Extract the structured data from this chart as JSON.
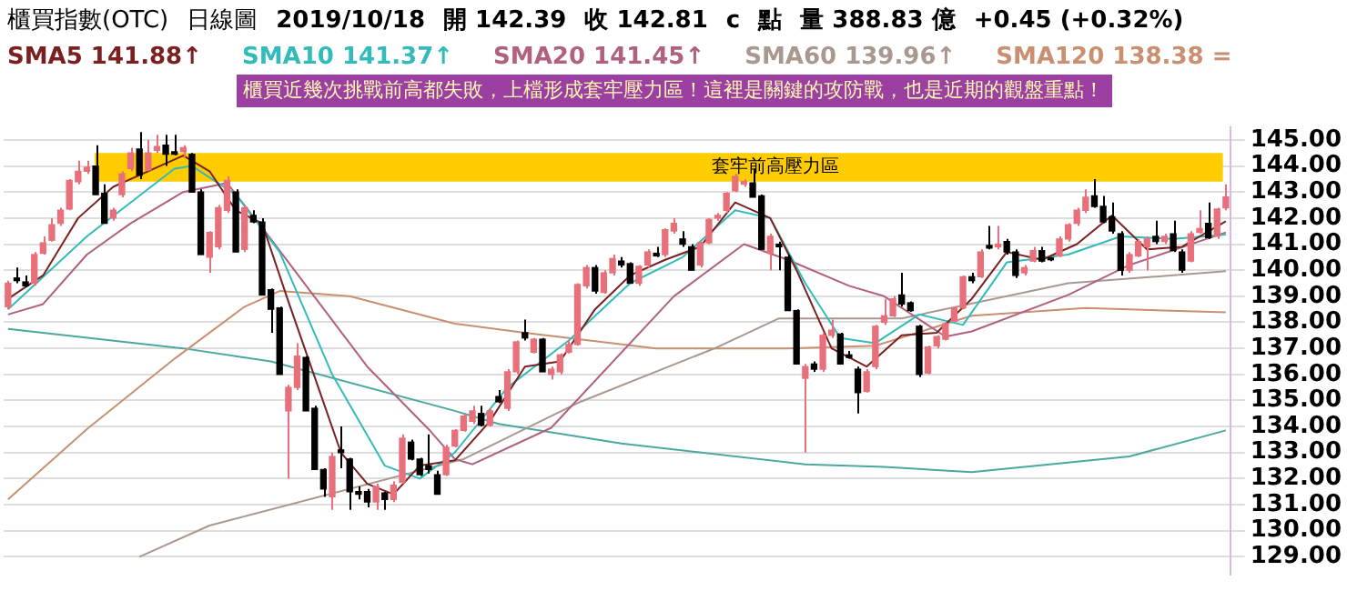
{
  "chart_data": {
    "type": "candlestick",
    "title": "櫃買指數(OTC)",
    "annotations": [
      "日線圖",
      "2019/10/18",
      "開 142.39",
      "收 142.81",
      "c",
      "點",
      "量 388.83 億",
      "+0.45 (+0.32%)",
      "櫃買近幾次挑戰前高都失敗，上檔形成套牢壓力區！這裡是關鍵的攻防戰，也是近期的觀盤重點！"
    ],
    "categories": [
      null,
      null,
      null,
      null,
      null,
      null,
      null,
      null,
      null,
      null,
      null,
      null,
      null,
      null,
      null,
      null,
      null,
      null,
      null,
      null,
      null,
      null,
      null,
      null,
      null,
      null,
      null,
      null,
      null,
      null,
      null,
      null,
      null,
      null,
      null,
      null,
      null,
      null,
      null,
      null,
      null,
      null,
      null,
      null,
      null,
      null,
      null,
      null,
      null,
      null,
      null,
      null,
      null,
      null,
      null,
      null,
      null,
      null,
      null,
      null,
      null,
      null,
      null,
      null,
      null,
      null,
      null,
      null,
      null,
      null,
      null,
      null,
      null,
      null,
      null,
      null,
      null,
      null,
      null,
      null,
      null,
      null,
      null,
      null,
      null,
      null,
      null,
      null,
      null,
      null,
      null,
      null,
      null,
      null,
      null,
      null,
      null,
      null,
      null,
      null,
      null,
      null,
      null,
      null,
      null,
      null,
      null,
      null,
      null,
      null,
      null,
      null,
      null,
      null,
      null,
      null,
      null,
      null,
      null,
      null,
      null,
      null,
      null,
      null,
      null,
      null,
      null,
      null,
      null,
      null,
      null,
      null,
      null,
      null,
      null,
      null,
      null,
      null,
      null,
      null
    ],
    "ohlc": [
      [
        138.6,
        139.6,
        138.5,
        139.5
      ],
      [
        139.7,
        140.1,
        139.5,
        139.6
      ],
      [
        139.55,
        139.8,
        139.35,
        139.4
      ],
      [
        139.5,
        140.7,
        139.4,
        140.6
      ],
      [
        140.65,
        141.3,
        140.6,
        141.05
      ],
      [
        141.15,
        142.0,
        141.1,
        141.75
      ],
      [
        141.8,
        142.4,
        141.7,
        142.3
      ],
      [
        142.35,
        143.5,
        142.3,
        143.45
      ],
      [
        143.4,
        144.2,
        143.3,
        143.8
      ],
      [
        143.8,
        144.2,
        143.7,
        143.95
      ],
      [
        144.0,
        144.8,
        142.9,
        142.9
      ],
      [
        142.95,
        143.3,
        141.8,
        141.8
      ],
      [
        142.0,
        142.4,
        141.9,
        142.3
      ],
      [
        142.9,
        143.8,
        142.8,
        143.7
      ],
      [
        143.9,
        144.7,
        143.8,
        144.5
      ],
      [
        144.65,
        145.3,
        143.5,
        143.65
      ],
      [
        143.85,
        145.0,
        143.8,
        144.5
      ],
      [
        144.6,
        145.2,
        144.5,
        144.75
      ],
      [
        144.8,
        145.2,
        144.0,
        144.45
      ],
      [
        144.55,
        145.2,
        144.4,
        144.45
      ],
      [
        144.55,
        144.8,
        144.3,
        144.7
      ],
      [
        144.45,
        144.5,
        143.0,
        143.0
      ],
      [
        143.0,
        143.1,
        140.6,
        140.6
      ],
      [
        140.5,
        141.5,
        139.9,
        141.45
      ],
      [
        140.9,
        142.5,
        140.8,
        142.4
      ],
      [
        142.3,
        143.6,
        142.2,
        143.45
      ],
      [
        143.0,
        143.1,
        140.7,
        140.7
      ],
      [
        140.8,
        142.5,
        140.7,
        142.4
      ],
      [
        142.1,
        142.3,
        141.8,
        141.85
      ],
      [
        141.85,
        142.0,
        139.05,
        139.05
      ],
      [
        139.25,
        139.3,
        137.6,
        138.5
      ],
      [
        138.55,
        138.6,
        136.0,
        136.0
      ],
      [
        134.6,
        135.6,
        132.0,
        135.5
      ],
      [
        135.5,
        137.2,
        135.4,
        136.7
      ],
      [
        136.65,
        136.7,
        134.6,
        134.6
      ],
      [
        134.7,
        134.8,
        132.35,
        132.35
      ],
      [
        132.35,
        132.4,
        131.3,
        131.6
      ],
      [
        131.3,
        133.0,
        130.8,
        132.85
      ],
      [
        133.1,
        134.0,
        132.4,
        133.0
      ],
      [
        132.75,
        132.8,
        130.8,
        131.5
      ],
      [
        131.5,
        131.7,
        131.2,
        131.4
      ],
      [
        131.5,
        131.6,
        130.9,
        131.1
      ],
      [
        131.1,
        131.8,
        130.8,
        131.7
      ],
      [
        131.45,
        131.5,
        130.8,
        131.2
      ],
      [
        131.2,
        131.9,
        131.1,
        131.75
      ],
      [
        131.85,
        133.7,
        131.8,
        133.55
      ],
      [
        133.4,
        133.5,
        132.7,
        132.75
      ],
      [
        132.75,
        132.8,
        132.1,
        132.15
      ],
      [
        132.5,
        133.7,
        132.2,
        132.35
      ],
      [
        132.15,
        132.3,
        131.4,
        131.4
      ],
      [
        132.15,
        133.3,
        132.1,
        133.2
      ],
      [
        133.25,
        133.9,
        133.2,
        133.85
      ],
      [
        133.85,
        134.5,
        133.8,
        134.4
      ],
      [
        134.2,
        134.8,
        134.1,
        134.6
      ],
      [
        134.5,
        134.8,
        134.0,
        134.05
      ],
      [
        134.05,
        134.7,
        134.0,
        134.6
      ],
      [
        135.15,
        135.4,
        134.9,
        134.95
      ],
      [
        134.7,
        136.2,
        134.6,
        136.1
      ],
      [
        136.1,
        137.3,
        136.0,
        137.25
      ],
      [
        137.6,
        138.1,
        137.3,
        137.4
      ],
      [
        136.85,
        137.4,
        136.8,
        137.35
      ],
      [
        137.35,
        137.4,
        136.1,
        136.1
      ],
      [
        136.0,
        136.3,
        135.8,
        136.2
      ],
      [
        136.1,
        136.8,
        136.0,
        136.75
      ],
      [
        136.85,
        137.3,
        136.8,
        137.15
      ],
      [
        137.15,
        139.5,
        137.1,
        139.45
      ],
      [
        139.4,
        140.2,
        139.3,
        140.1
      ],
      [
        140.1,
        140.2,
        139.1,
        139.2
      ],
      [
        139.15,
        140.0,
        139.1,
        139.9
      ],
      [
        139.9,
        140.6,
        139.8,
        140.45
      ],
      [
        140.35,
        140.5,
        140.1,
        140.2
      ],
      [
        140.25,
        140.3,
        139.5,
        139.5
      ],
      [
        139.5,
        140.2,
        139.4,
        140.15
      ],
      [
        140.2,
        140.8,
        140.1,
        140.7
      ],
      [
        140.65,
        140.9,
        140.5,
        140.55
      ],
      [
        140.6,
        141.6,
        140.5,
        141.55
      ],
      [
        141.5,
        142.0,
        141.4,
        141.8
      ],
      [
        141.2,
        141.5,
        140.9,
        141.0
      ],
      [
        140.9,
        141.0,
        140.0,
        140.0
      ],
      [
        140.2,
        141.1,
        140.1,
        141.05
      ],
      [
        141.05,
        142.0,
        141.0,
        141.95
      ],
      [
        142.0,
        142.2,
        141.9,
        142.1
      ],
      [
        142.3,
        143.0,
        142.2,
        142.95
      ],
      [
        143.05,
        143.7,
        143.0,
        143.6
      ],
      [
        143.3,
        143.5,
        143.2,
        143.4
      ],
      [
        143.35,
        143.9,
        142.8,
        142.8
      ],
      [
        142.85,
        142.9,
        140.8,
        140.8
      ],
      [
        140.65,
        141.4,
        140.0,
        141.3
      ],
      [
        141.0,
        141.1,
        140.0,
        140.9
      ],
      [
        140.5,
        140.6,
        138.45,
        138.45
      ],
      [
        138.45,
        138.5,
        136.4,
        136.4
      ],
      [
        135.85,
        136.4,
        133.0,
        136.3
      ],
      [
        136.4,
        136.5,
        136.1,
        136.2
      ],
      [
        136.2,
        137.6,
        136.1,
        137.5
      ],
      [
        137.5,
        138.1,
        137.4,
        137.7
      ],
      [
        137.55,
        137.6,
        136.4,
        136.4
      ],
      [
        136.75,
        136.9,
        136.6,
        136.65
      ],
      [
        136.2,
        136.3,
        134.5,
        135.3
      ],
      [
        135.35,
        136.2,
        135.3,
        136.1
      ],
      [
        136.3,
        137.9,
        136.2,
        137.85
      ],
      [
        138.0,
        138.9,
        137.9,
        138.25
      ],
      [
        138.25,
        139.0,
        138.2,
        138.9
      ],
      [
        139.05,
        139.9,
        138.6,
        138.7
      ],
      [
        138.75,
        138.8,
        138.4,
        138.45
      ],
      [
        137.85,
        137.9,
        135.9,
        136.0
      ],
      [
        136.05,
        137.1,
        136.0,
        137.05
      ],
      [
        137.1,
        137.5,
        137.0,
        137.45
      ],
      [
        137.35,
        138.0,
        137.3,
        137.95
      ],
      [
        138.05,
        138.6,
        138.0,
        138.55
      ],
      [
        138.55,
        139.8,
        138.5,
        139.75
      ],
      [
        139.75,
        139.9,
        139.5,
        139.6
      ],
      [
        139.75,
        140.8,
        139.7,
        140.7
      ],
      [
        140.95,
        141.7,
        140.8,
        140.85
      ],
      [
        140.9,
        141.7,
        140.8,
        141.0
      ],
      [
        141.1,
        141.2,
        140.6,
        140.7
      ],
      [
        140.7,
        140.8,
        139.7,
        139.8
      ],
      [
        139.9,
        140.2,
        139.8,
        140.1
      ],
      [
        140.35,
        140.9,
        140.3,
        140.75
      ],
      [
        140.75,
        140.9,
        140.3,
        140.35
      ],
      [
        140.45,
        140.5,
        140.35,
        140.4
      ],
      [
        140.55,
        141.3,
        140.5,
        141.2
      ],
      [
        141.2,
        141.8,
        141.1,
        141.75
      ],
      [
        141.8,
        142.4,
        141.7,
        142.3
      ],
      [
        142.3,
        143.1,
        142.2,
        142.8
      ],
      [
        142.85,
        143.5,
        142.4,
        142.45
      ],
      [
        142.45,
        142.85,
        141.8,
        141.85
      ],
      [
        142.05,
        142.6,
        141.4,
        141.5
      ],
      [
        141.4,
        141.5,
        139.8,
        140.0
      ],
      [
        140.0,
        140.7,
        139.9,
        140.6
      ],
      [
        140.55,
        141.2,
        140.5,
        141.1
      ],
      [
        140.9,
        141.3,
        140.0,
        141.2
      ],
      [
        141.3,
        141.9,
        141.0,
        141.1
      ],
      [
        141.1,
        141.4,
        141.0,
        141.3
      ],
      [
        141.4,
        141.9,
        140.7,
        140.75
      ],
      [
        140.7,
        140.8,
        139.9,
        140.0
      ],
      [
        140.35,
        141.5,
        140.3,
        141.4
      ],
      [
        141.45,
        142.3,
        141.4,
        141.6
      ],
      [
        141.8,
        142.6,
        141.2,
        141.25
      ],
      [
        141.3,
        142.4,
        141.2,
        142.35
      ],
      [
        142.39,
        143.3,
        142.3,
        142.81
      ]
    ],
    "colors": [
      "#e8707a",
      "#000000",
      "#000000",
      "#e8707a",
      "#e8707a",
      "#e8707a",
      "#e8707a",
      "#e8707a",
      "#e8707a",
      "#e8707a",
      "#000000",
      "#000000",
      "#e8707a",
      "#e8707a",
      "#e8707a",
      "#000000",
      "#e8707a",
      "#e8707a",
      "#000000",
      "#000000",
      "#e8707a",
      "#000000",
      "#000000",
      "#e8707a",
      "#e8707a",
      "#e8707a",
      "#000000",
      "#e8707a",
      "#000000",
      "#000000",
      "#000000",
      "#000000",
      "#e8707a",
      "#e8707a",
      "#000000",
      "#000000",
      "#000000",
      "#e8707a",
      "#000000",
      "#000000",
      "#000000",
      "#000000",
      "#e8707a",
      "#000000",
      "#e8707a",
      "#e8707a",
      "#000000",
      "#000000",
      "#000000",
      "#000000",
      "#e8707a",
      "#e8707a",
      "#e8707a",
      "#e8707a",
      "#000000",
      "#e8707a",
      "#000000",
      "#e8707a",
      "#e8707a",
      "#000000",
      "#e8707a",
      "#000000",
      "#e8707a",
      "#e8707a",
      "#e8707a",
      "#e8707a",
      "#e8707a",
      "#000000",
      "#e8707a",
      "#e8707a",
      "#000000",
      "#000000",
      "#e8707a",
      "#e8707a",
      "#000000",
      "#e8707a",
      "#e8707a",
      "#000000",
      "#000000",
      "#e8707a",
      "#e8707a",
      "#e8707a",
      "#e8707a",
      "#e8707a",
      "#e8707a",
      "#000000",
      "#000000",
      "#e8707a",
      "#000000",
      "#000000",
      "#000000",
      "#e8707a",
      "#000000",
      "#e8707a",
      "#e8707a",
      "#000000",
      "#000000",
      "#000000",
      "#e8707a",
      "#e8707a",
      "#e8707a",
      "#e8707a",
      "#000000",
      "#000000",
      "#000000",
      "#e8707a",
      "#e8707a",
      "#e8707a",
      "#e8707a",
      "#e8707a",
      "#000000",
      "#e8707a",
      "#000000",
      "#e8707a",
      "#000000",
      "#000000",
      "#e8707a",
      "#e8707a",
      "#000000",
      "#000000",
      "#e8707a",
      "#e8707a",
      "#e8707a",
      "#e8707a",
      "#000000",
      "#000000",
      "#000000",
      "#000000",
      "#e8707a",
      "#e8707a",
      "#e8707a",
      "#000000",
      "#e8707a",
      "#000000",
      "#000000",
      "#e8707a",
      "#e8707a",
      "#000000",
      "#e8707a",
      "#e8707a"
    ],
    "series": [
      {
        "type": "line",
        "name": "SMA5 141.88↑",
        "color": "#7a2020",
        "values": [
          138.9,
          null,
          null,
          null,
          139.8,
          null,
          null,
          null,
          142.0,
          null,
          null,
          null,
          143.2,
          null,
          null,
          null,
          143.8,
          null,
          null,
          null,
          144.4,
          null,
          null,
          143.8,
          null,
          null,
          142.3,
          null,
          null,
          141.8,
          null,
          null,
          138.8,
          null,
          null,
          135.9,
          null,
          null,
          133.0,
          null,
          null,
          131.8,
          null,
          null,
          131.4,
          null,
          null,
          132.5,
          null,
          null,
          null,
          132.7,
          null,
          null,
          null,
          134.2,
          null,
          null,
          null,
          136.3,
          null,
          null,
          null,
          136.5,
          null,
          null,
          null,
          138.5,
          null,
          null,
          null,
          139.8,
          null,
          null,
          null,
          140.4,
          null,
          null,
          null,
          140.9,
          null,
          null,
          null,
          142.6,
          null,
          null,
          null,
          142.0,
          null,
          null,
          140.0,
          null,
          null,
          null,
          137.0,
          null,
          null,
          null,
          136.3,
          null,
          null,
          null,
          137.5,
          null,
          null,
          null,
          137.6,
          null,
          null,
          null,
          138.9,
          null,
          null,
          null,
          140.7,
          null,
          null,
          null,
          140.4,
          null,
          null,
          null,
          141.0,
          null,
          null,
          null,
          142.1,
          null,
          null,
          null,
          140.8,
          null,
          null,
          null,
          140.9,
          null,
          null,
          null,
          null,
          141.88
        ]
      },
      {
        "type": "line",
        "name": "SMA10 141.37↑",
        "color": "#33bbbb",
        "values": [
          138.5,
          null,
          null,
          null,
          null,
          null,
          null,
          null,
          null,
          141.3,
          null,
          null,
          null,
          null,
          142.6,
          null,
          null,
          null,
          null,
          143.9,
          null,
          144.0,
          null,
          null,
          null,
          null,
          142.9,
          null,
          null,
          null,
          null,
          140.7,
          null,
          null,
          null,
          null,
          null,
          136.0,
          null,
          null,
          null,
          null,
          null,
          132.5,
          null,
          null,
          null,
          132.0,
          null,
          null,
          null,
          133.0,
          null,
          null,
          null,
          null,
          null,
          135.5,
          null,
          null,
          null,
          null,
          null,
          null,
          137.3,
          null,
          null,
          null,
          null,
          null,
          null,
          139.5,
          null,
          null,
          null,
          null,
          null,
          140.5,
          null,
          null,
          null,
          null,
          null,
          142.3,
          null,
          null,
          null,
          142.0,
          null,
          null,
          null,
          139.5,
          null,
          null,
          null,
          137.4,
          null,
          null,
          null,
          137.2,
          null,
          null,
          null,
          null,
          138.3,
          null,
          null,
          null,
          null,
          137.9,
          null,
          null,
          null,
          null,
          140.3,
          null,
          null,
          null,
          null,
          null,
          null,
          140.6,
          null,
          null,
          null,
          null,
          null,
          141.3,
          null,
          null,
          null,
          null,
          null,
          141.2,
          null,
          null,
          null,
          null,
          null,
          141.37
        ]
      },
      {
        "type": "line",
        "name": "SMA20 141.45↑",
        "color": "#b06080",
        "values": [
          138.3,
          null,
          null,
          null,
          138.7,
          null,
          null,
          null,
          null,
          140.6,
          null,
          null,
          null,
          null,
          141.8,
          null,
          null,
          null,
          null,
          null,
          143.0,
          null,
          null,
          null,
          null,
          143.35,
          null,
          null,
          null,
          null,
          141.2,
          null,
          null,
          null,
          null,
          null,
          null,
          null,
          null,
          null,
          null,
          136.3,
          null,
          null,
          null,
          null,
          null,
          null,
          133.9,
          null,
          null,
          132.75,
          null,
          132.55,
          null,
          null,
          null,
          null,
          null,
          null,
          null,
          null,
          133.95,
          null,
          null,
          null,
          null,
          null,
          null,
          null,
          null,
          null,
          null,
          null,
          null,
          null,
          139.0,
          null,
          null,
          null,
          null,
          null,
          null,
          null,
          141.0,
          null,
          null,
          null,
          null,
          140.4,
          null,
          null,
          null,
          null,
          null,
          null,
          139.4,
          null,
          null,
          null,
          139.0,
          null,
          null,
          null,
          null,
          null,
          null,
          137.45,
          null,
          null,
          137.65,
          null,
          null,
          null,
          null,
          null,
          null,
          null,
          null,
          null,
          null,
          139.05,
          null,
          null,
          null,
          null,
          null,
          null,
          140.2,
          null,
          null,
          null,
          null,
          null,
          null,
          null,
          null,
          null,
          null,
          141.45
        ]
      },
      {
        "type": "line",
        "name": "SMA60 139.96↑",
        "color": "#a89890",
        "values": [
          null,
          null,
          null,
          null,
          null,
          null,
          null,
          null,
          null,
          null,
          null,
          null,
          null,
          null,
          null,
          129.0,
          null,
          null,
          null,
          null,
          null,
          null,
          null,
          130.2,
          null,
          null,
          null,
          null,
          null,
          null,
          null,
          null,
          null,
          null,
          null,
          null,
          null,
          null,
          null,
          null,
          null,
          null,
          null,
          null,
          null,
          null,
          null,
          null,
          null,
          null,
          null,
          null,
          132.75,
          null,
          null,
          null,
          null,
          null,
          null,
          null,
          null,
          null,
          null,
          null,
          null,
          134.9,
          null,
          null,
          null,
          null,
          null,
          null,
          null,
          null,
          null,
          null,
          null,
          null,
          null,
          null,
          null,
          137.05,
          null,
          null,
          null,
          null,
          null,
          null,
          138.15,
          null,
          null,
          null,
          null,
          null,
          null,
          null,
          null,
          null,
          null,
          null,
          null,
          null,
          138.15,
          null,
          null,
          null,
          null,
          null,
          null,
          null,
          null,
          null,
          null,
          null,
          null,
          null,
          null,
          null,
          null,
          null,
          null,
          139.5,
          null,
          null,
          null,
          null,
          null,
          null,
          null,
          null,
          null,
          null,
          null,
          null,
          null,
          null,
          null,
          null,
          null,
          139.96
        ]
      },
      {
        "type": "line",
        "name": "SMA120 138.38 =",
        "color": "#c89070",
        "values": [
          131.2,
          null,
          null,
          null,
          null,
          null,
          null,
          null,
          null,
          133.9,
          null,
          null,
          null,
          null,
          null,
          null,
          null,
          null,
          null,
          136.6,
          null,
          null,
          null,
          null,
          null,
          null,
          null,
          138.6,
          null,
          null,
          null,
          139.2,
          null,
          null,
          null,
          null,
          null,
          null,
          null,
          139.0,
          null,
          null,
          null,
          null,
          null,
          null,
          null,
          null,
          null,
          null,
          null,
          137.95,
          null,
          null,
          null,
          null,
          null,
          null,
          null,
          137.6,
          null,
          null,
          null,
          null,
          null,
          null,
          null,
          null,
          null,
          null,
          null,
          null,
          null,
          null,
          137.0,
          null,
          null,
          null,
          null,
          null,
          null,
          null,
          null,
          null,
          null,
          null,
          null,
          null,
          null,
          137.0,
          null,
          null,
          null,
          null,
          null,
          null,
          null,
          null,
          null,
          137.1,
          null,
          null,
          null,
          null,
          null,
          null,
          null,
          null,
          null,
          null,
          138.25,
          null,
          null,
          null,
          null,
          null,
          null,
          null,
          null,
          null,
          null,
          null,
          null,
          138.55,
          null,
          null,
          null,
          null,
          null,
          null,
          null,
          null,
          null,
          null,
          null,
          null,
          null,
          null,
          null,
          138.38
        ]
      },
      {
        "type": "line",
        "color": "#4aa8a0",
        "values": [
          137.75,
          null,
          null,
          null,
          null,
          null,
          null,
          null,
          null,
          null,
          null,
          null,
          null,
          null,
          null,
          null,
          null,
          null,
          null,
          null,
          137.0,
          null,
          null,
          null,
          null,
          null,
          null,
          null,
          null,
          null,
          136.5,
          null,
          null,
          null,
          null,
          null,
          null,
          null,
          null,
          null,
          null,
          null,
          null,
          null,
          null,
          null,
          null,
          null,
          null,
          null,
          null,
          134.6,
          null,
          null,
          null,
          null,
          134.1,
          null,
          null,
          null,
          null,
          null,
          null,
          null,
          null,
          null,
          null,
          null,
          null,
          null,
          133.35,
          null,
          null,
          null,
          null,
          null,
          null,
          null,
          null,
          null,
          null,
          null,
          null,
          null,
          null,
          null,
          null,
          null,
          null,
          null,
          null,
          132.55,
          null,
          null,
          null,
          null,
          null,
          null,
          null,
          null,
          132.45,
          null,
          null,
          null,
          null,
          null,
          null,
          null,
          null,
          null,
          132.25,
          null,
          null,
          null,
          null,
          null,
          null,
          null,
          null,
          null,
          null,
          null,
          null,
          null,
          null,
          null,
          null,
          null,
          132.85,
          null,
          null,
          null,
          null,
          null,
          null,
          null,
          null,
          null,
          null,
          133.85
        ]
      }
    ],
    "bands": [
      {
        "axis": "y",
        "from": 143.4,
        "to": 144.5,
        "label": "套牢前高壓力區",
        "color": "#ffcc00"
      }
    ],
    "ylim": [
      128.3,
      145.5
    ],
    "yticks": [
      {
        "value": 129,
        "label": "129.00"
      },
      {
        "value": 130,
        "label": "130.00"
      },
      {
        "value": 131,
        "label": "131.00"
      },
      {
        "value": 132,
        "label": "132.00"
      },
      {
        "value": 133,
        "label": "133.00"
      },
      {
        "value": 134,
        "label": "134.00"
      },
      {
        "value": 135,
        "label": "135.00"
      },
      {
        "value": 136,
        "label": "136.00"
      },
      {
        "value": 137,
        "label": "137.00"
      },
      {
        "value": 138,
        "label": "138.00"
      },
      {
        "value": 139,
        "label": "139.00"
      },
      {
        "value": 140,
        "label": "140.00"
      },
      {
        "value": 141,
        "label": "141.00"
      },
      {
        "value": 142,
        "label": "142.00"
      },
      {
        "value": 143,
        "label": "143.00"
      },
      {
        "value": 144,
        "label": "144.00"
      },
      {
        "value": 145,
        "label": "145.00"
      }
    ],
    "grid": "y",
    "legend": "top left",
    "tick_labels": "y"
  }
}
